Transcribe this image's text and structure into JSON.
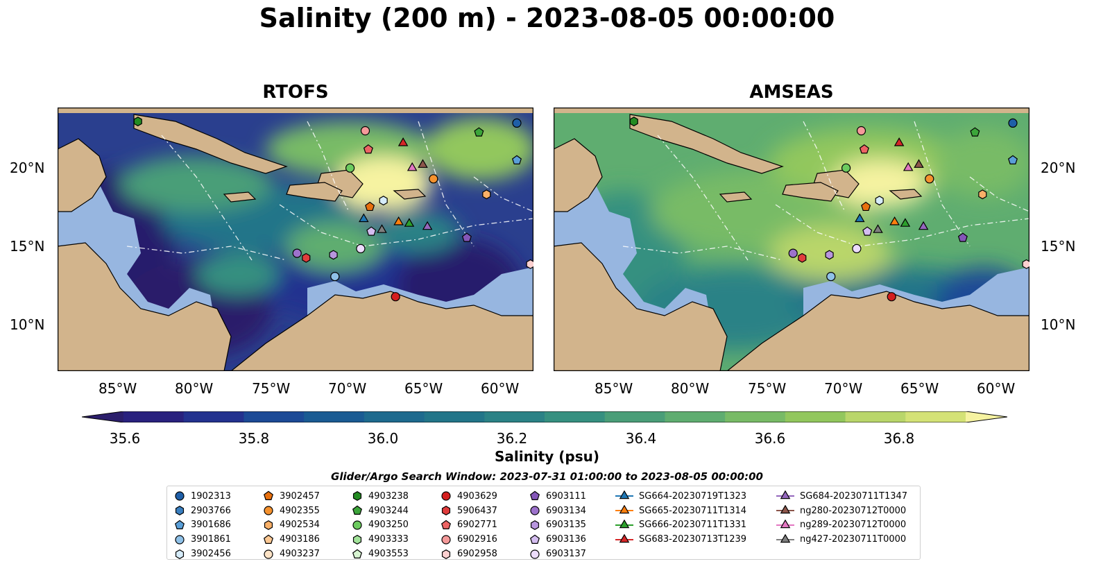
{
  "title": "Salinity (200 m) - 2023-08-05 00:00:00",
  "panels": [
    {
      "title": "RTOFS"
    },
    {
      "title": "AMSEAS"
    }
  ],
  "axes": {
    "lon_ticks": [
      "85°W",
      "80°W",
      "75°W",
      "70°W",
      "65°W",
      "60°W"
    ],
    "lat_ticks": [
      "20°N",
      "15°N",
      "10°N"
    ]
  },
  "colorbar": {
    "label": "Salinity (psu)",
    "ticks": [
      "35.6",
      "35.8",
      "36.0",
      "36.2",
      "36.4",
      "36.6",
      "36.8"
    ],
    "range": [
      35.5,
      36.9
    ],
    "colors": [
      "#2b1e6b",
      "#29217e",
      "#23328f",
      "#1c4a96",
      "#1a5b93",
      "#1e6a8e",
      "#227589",
      "#2b8286",
      "#369080",
      "#4a9e78",
      "#5fad70",
      "#78bb66",
      "#92c75d",
      "#b9d66a",
      "#d4e276",
      "#f6f3a1"
    ]
  },
  "search_window": "Glider/Argo Search Window: 2023-07-31 01:00:00 to 2023-08-05 00:00:00",
  "legend": {
    "columns": [
      [
        {
          "label": "1902313",
          "marker": "circle",
          "color": "#1f5fa8"
        },
        {
          "label": "2903766",
          "marker": "hexagon",
          "color": "#3a7fc0"
        },
        {
          "label": "3901686",
          "marker": "pentagon",
          "color": "#5a9fd8"
        },
        {
          "label": "3901861",
          "marker": "circle",
          "color": "#8fc1e8"
        },
        {
          "label": "3902456",
          "marker": "hexagon",
          "color": "#d6ecfa"
        }
      ],
      [
        {
          "label": "3902457",
          "marker": "pentagon",
          "color": "#e8700e"
        },
        {
          "label": "4902355",
          "marker": "circle",
          "color": "#f5922e"
        },
        {
          "label": "4902534",
          "marker": "hexagon",
          "color": "#f9b068"
        },
        {
          "label": "4903186",
          "marker": "pentagon",
          "color": "#fcc893"
        },
        {
          "label": "4903237",
          "marker": "circle",
          "color": "#fde3c6"
        }
      ],
      [
        {
          "label": "4903238",
          "marker": "hexagon",
          "color": "#238b22"
        },
        {
          "label": "4903244",
          "marker": "pentagon",
          "color": "#3ca53a"
        },
        {
          "label": "4903250",
          "marker": "circle",
          "color": "#6ccb5f"
        },
        {
          "label": "4903333",
          "marker": "hexagon",
          "color": "#a2e39a"
        },
        {
          "label": "4903553",
          "marker": "pentagon",
          "color": "#d8f5d2"
        }
      ],
      [
        {
          "label": "4903629",
          "marker": "circle",
          "color": "#d41f1f"
        },
        {
          "label": "5906437",
          "marker": "hexagon",
          "color": "#e03c3c"
        },
        {
          "label": "6902771",
          "marker": "pentagon",
          "color": "#ec6464"
        },
        {
          "label": "6902916",
          "marker": "circle",
          "color": "#f59a9a"
        },
        {
          "label": "6902958",
          "marker": "hexagon",
          "color": "#fcd0d0"
        }
      ],
      [
        {
          "label": "6903111",
          "marker": "pentagon",
          "color": "#8456b8"
        },
        {
          "label": "6903134",
          "marker": "circle",
          "color": "#9d72cc"
        },
        {
          "label": "6903135",
          "marker": "hexagon",
          "color": "#b896de"
        },
        {
          "label": "6903136",
          "marker": "pentagon",
          "color": "#d4bdf0"
        },
        {
          "label": "6903137",
          "marker": "circle",
          "color": "#ecdcfb"
        }
      ],
      [
        {
          "label": "SG664-20230719T1323",
          "marker": "triangle",
          "color": "#1f77b4"
        },
        {
          "label": "SG665-20230711T1314",
          "marker": "triangle",
          "color": "#ff7f0e"
        },
        {
          "label": "SG666-20230711T1331",
          "marker": "triangle",
          "color": "#2ca02c"
        },
        {
          "label": "SG683-20230713T1239",
          "marker": "triangle",
          "color": "#d62728"
        }
      ],
      [
        {
          "label": "SG684-20230711T1347",
          "marker": "triangle",
          "color": "#9467bd"
        },
        {
          "label": "ng280-20230712T0000",
          "marker": "triangle",
          "color": "#8c564b"
        },
        {
          "label": "ng289-20230712T0000",
          "marker": "triangle",
          "color": "#e377c2"
        },
        {
          "label": "ng427-20230711T0000",
          "marker": "triangle",
          "color": "#7f7f7f"
        }
      ]
    ]
  },
  "map_colors": {
    "land": "#d2b48c",
    "shelf": "#97b6e0",
    "contour": "#ffffff"
  },
  "extent": {
    "lon": [
      -89.6,
      -58.2
    ],
    "lat": [
      7.0,
      24.0
    ]
  },
  "observations": [
    {
      "label": "1902313",
      "lon": -59.3,
      "lat": 23.0
    },
    {
      "label": "3901686",
      "lon": -59.3,
      "lat": 20.6
    },
    {
      "label": "4903244",
      "lon": -61.8,
      "lat": 22.4
    },
    {
      "label": "4903238",
      "lon": -84.3,
      "lat": 23.1
    },
    {
      "label": "6902916",
      "lon": -69.3,
      "lat": 22.5
    },
    {
      "label": "6902771",
      "lon": -69.1,
      "lat": 21.3
    },
    {
      "label": "4903250",
      "lon": -70.3,
      "lat": 20.1
    },
    {
      "label": "SG683-20230713T1239",
      "lon": -66.8,
      "lat": 21.7
    },
    {
      "label": "ng289-20230712T0000",
      "lon": -66.2,
      "lat": 20.1
    },
    {
      "label": "ng280-20230712T0000",
      "lon": -65.5,
      "lat": 20.3
    },
    {
      "label": "4902355",
      "lon": -64.8,
      "lat": 19.4
    },
    {
      "label": "4902534",
      "lon": -61.3,
      "lat": 18.4
    },
    {
      "label": "3902457",
      "lon": -69.0,
      "lat": 17.6
    },
    {
      "label": "3902456",
      "lon": -68.1,
      "lat": 18.0
    },
    {
      "label": "SG664-20230719T1323",
      "lon": -69.4,
      "lat": 16.8
    },
    {
      "label": "SG665-20230711T1314",
      "lon": -67.1,
      "lat": 16.6
    },
    {
      "label": "SG666-20230711T1331",
      "lon": -66.4,
      "lat": 16.5
    },
    {
      "label": "SG684-20230711T1347",
      "lon": -65.2,
      "lat": 16.3
    },
    {
      "label": "ng427-20230711T0000",
      "lon": -68.2,
      "lat": 16.1
    },
    {
      "label": "6903136",
      "lon": -68.9,
      "lat": 16.0
    },
    {
      "label": "6903111",
      "lon": -62.6,
      "lat": 15.6
    },
    {
      "label": "6903137",
      "lon": -69.6,
      "lat": 14.9
    },
    {
      "label": "6903134",
      "lon": -73.8,
      "lat": 14.6
    },
    {
      "label": "5906437",
      "lon": -73.2,
      "lat": 14.3
    },
    {
      "label": "6903135",
      "lon": -71.4,
      "lat": 14.5
    },
    {
      "label": "3901861",
      "lon": -71.3,
      "lat": 13.1
    },
    {
      "label": "6902958",
      "lon": -58.4,
      "lat": 13.9
    },
    {
      "label": "4903629",
      "lon": -67.3,
      "lat": 11.8
    }
  ]
}
